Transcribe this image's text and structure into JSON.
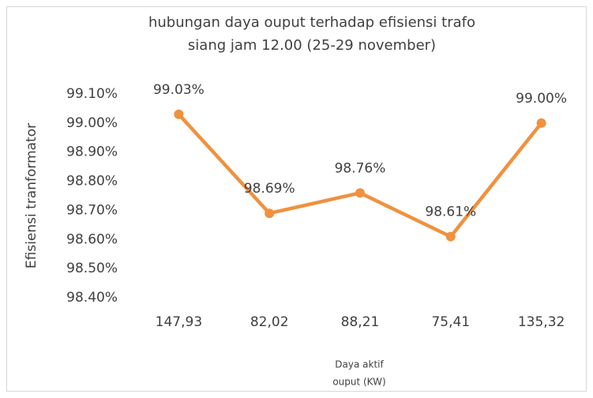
{
  "chart_data": {
    "type": "line",
    "title": [
      "hubungan daya ouput terhadap efisiensi trafo",
      "siang jam 12.00 (25-29 november)"
    ],
    "x_label": [
      "Daya aktif",
      "ouput (KW)"
    ],
    "y_label": "Efisiensi tranformator",
    "categories": [
      "147,93",
      "82,02",
      "88,21",
      "75,41",
      "135,32"
    ],
    "series": [
      {
        "name": "Efisiensi",
        "color": "#f0913e",
        "values": [
          99.03,
          98.69,
          98.76,
          98.61,
          99.0
        ],
        "value_labels": [
          "99.03%",
          "98.69%",
          "98.76%",
          "98.61%",
          "99.00%"
        ]
      }
    ],
    "ylim": [
      98.4,
      99.1
    ],
    "yticks": [
      {
        "value": 98.4,
        "label": "98.40%"
      },
      {
        "value": 98.5,
        "label": "98.50%"
      },
      {
        "value": 98.6,
        "label": "98.60%"
      },
      {
        "value": 98.7,
        "label": "98.70%"
      },
      {
        "value": 98.8,
        "label": "98.80%"
      },
      {
        "value": 98.9,
        "label": "98.90%"
      },
      {
        "value": 99.0,
        "label": "99.00%"
      },
      {
        "value": 99.1,
        "label": "99.10%"
      }
    ],
    "grid": false,
    "legend": false
  }
}
